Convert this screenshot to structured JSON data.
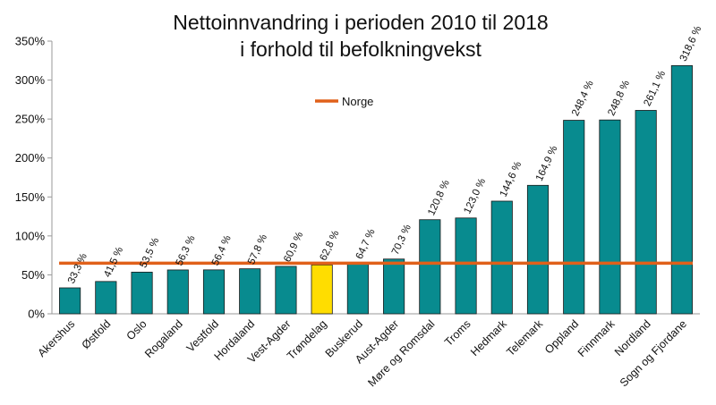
{
  "chart_data": {
    "type": "bar",
    "title_line1": "Nettoinnvandring i perioden 2010 til 2018",
    "title_line2": "i forhold til befolkningvekst",
    "categories": [
      "Akershus",
      "Østfold",
      "Oslo",
      "Rogaland",
      "Vestfold",
      "Hordaland",
      "Vest-Agder",
      "Trøndelag",
      "Buskerud",
      "Aust-Agder",
      "Møre og Romsdal",
      "Troms",
      "Hedmark",
      "Telemark",
      "Oppland",
      "Finnmark",
      "Nordland",
      "Sogn og Fjordane"
    ],
    "values": [
      33.3,
      41.5,
      53.5,
      56.3,
      56.4,
      57.8,
      60.9,
      62.8,
      64.7,
      70.3,
      120.8,
      123.0,
      144.6,
      164.9,
      248.4,
      248.8,
      261.1,
      318.6
    ],
    "data_labels": [
      "33,3 %",
      "41,5 %",
      "53,5 %",
      "56,3 %",
      "56,4 %",
      "57,8 %",
      "60,9 %",
      "62,8 %",
      "64,7 %",
      "70,3 %",
      "120,8 %",
      "123,0 %",
      "144,6 %",
      "164,9 %",
      "248,4 %",
      "248,8 %",
      "261,1 %",
      "318,6 %"
    ],
    "highlight_category": "Trøndelag",
    "reference_line": {
      "name": "Norge",
      "value": 65
    },
    "ylim": [
      0,
      350
    ],
    "yticks": [
      0,
      50,
      100,
      150,
      200,
      250,
      300,
      350
    ],
    "ytick_labels": [
      "0%",
      "50%",
      "100%",
      "150%",
      "200%",
      "250%",
      "300%",
      "350%"
    ],
    "xlabel": "",
    "ylabel": "",
    "legend_position": "top-center",
    "grid": false,
    "colors": {
      "bar": "#088B8F",
      "highlight": "#FFDD00",
      "line": "#E0601A",
      "axis": "#999999"
    }
  }
}
